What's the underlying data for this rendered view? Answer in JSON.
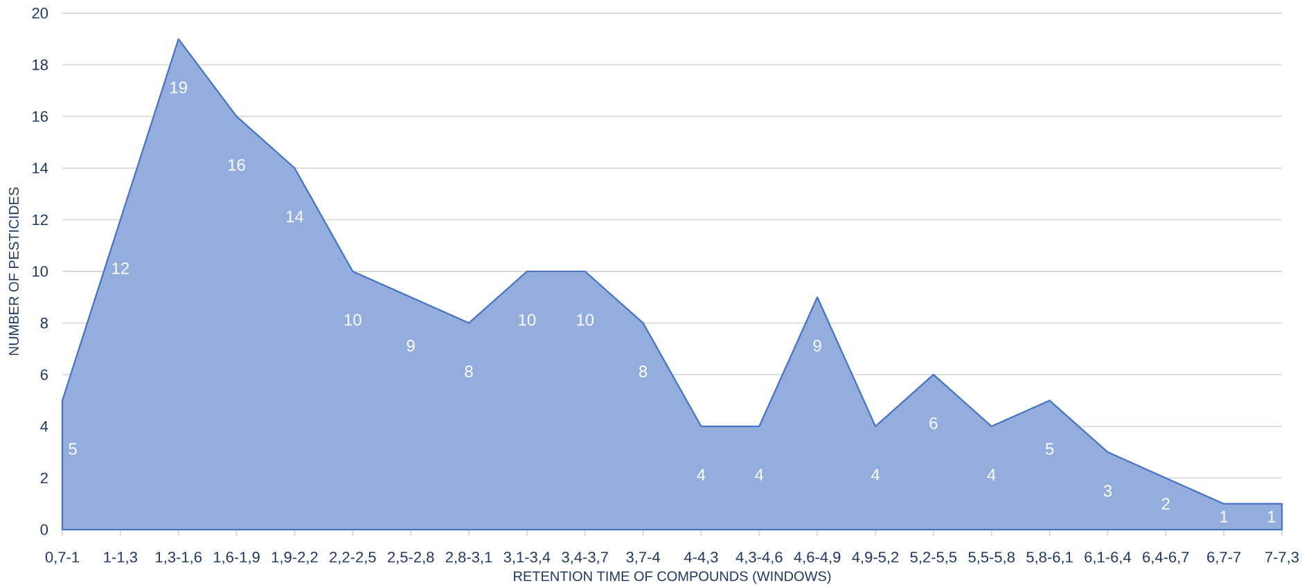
{
  "chart_data": {
    "type": "area",
    "xlabel": "RETENTION TIME OF COMPOUNDS (WINDOWS)",
    "ylabel": "NUMBER OF PESTICIDES",
    "categories": [
      "0,7-1",
      "1-1,3",
      "1,3-1,6",
      "1,6-1,9",
      "1,9-2,2",
      "2,2-2,5",
      "2,5-2,8",
      "2,8-3,1",
      "3,1-3,4",
      "3,4-3,7",
      "3,7-4",
      "4-4,3",
      "4,3-4,6",
      "4,6-4,9",
      "4,9-5,2",
      "5,2-5,5",
      "5,5-5,8",
      "5,8-6,1",
      "6,1-6,4",
      "6,4-6,7",
      "6,7-7",
      "7-7,3"
    ],
    "values": [
      5,
      12,
      19,
      16,
      14,
      10,
      9,
      8,
      10,
      10,
      8,
      4,
      4,
      9,
      4,
      6,
      4,
      5,
      3,
      2,
      1,
      1
    ],
    "color": "#4472c4",
    "ylim": [
      0,
      20
    ],
    "yticks": [
      0,
      2,
      4,
      6,
      8,
      10,
      12,
      14,
      16,
      18,
      20
    ],
    "grid": "y",
    "data_labels": true
  }
}
